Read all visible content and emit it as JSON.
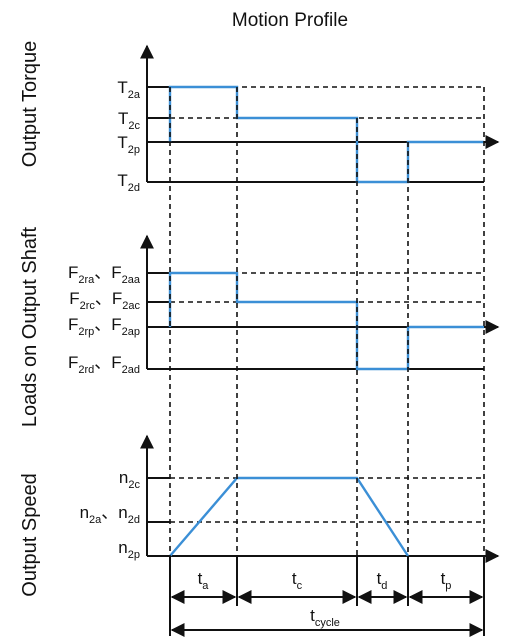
{
  "title": "Motion Profile",
  "panels": {
    "torque": {
      "ylabel": "Output Torque",
      "levels": [
        {
          "main": "T",
          "sub": "2a"
        },
        {
          "main": "T",
          "sub": "2c"
        },
        {
          "main": "T",
          "sub": "2p"
        },
        {
          "main": "T",
          "sub": "2d"
        }
      ]
    },
    "loads": {
      "ylabel": "Loads on Output Shaft",
      "levels": [
        {
          "main1": "F",
          "sub1": "2ra",
          "sep": "、",
          "main2": "F",
          "sub2": "2aa"
        },
        {
          "main1": "F",
          "sub1": "2rc",
          "sep": "、",
          "main2": "F",
          "sub2": "2ac"
        },
        {
          "main1": "F",
          "sub1": "2rp",
          "sep": "、",
          "main2": "F",
          "sub2": "2ap"
        },
        {
          "main1": "F",
          "sub1": "2rd",
          "sep": "、",
          "main2": "F",
          "sub2": "2ad"
        }
      ]
    },
    "speed": {
      "ylabel": "Output Speed",
      "levels": [
        {
          "main": "n",
          "sub": "2c"
        },
        {
          "main1": "n",
          "sub1": "2a",
          "sep": "、",
          "main2": "n",
          "sub2": "2d"
        },
        {
          "main": "n",
          "sub": "2p"
        }
      ]
    }
  },
  "phases": [
    {
      "main": "t",
      "sub": "a"
    },
    {
      "main": "t",
      "sub": "c"
    },
    {
      "main": "t",
      "sub": "d"
    },
    {
      "main": "t",
      "sub": "p"
    }
  ],
  "cycle": {
    "main": "t",
    "sub": "cycle"
  },
  "colors": {
    "trace": "#3b8fd6",
    "line": "#111111",
    "background": "#ffffff"
  }
}
